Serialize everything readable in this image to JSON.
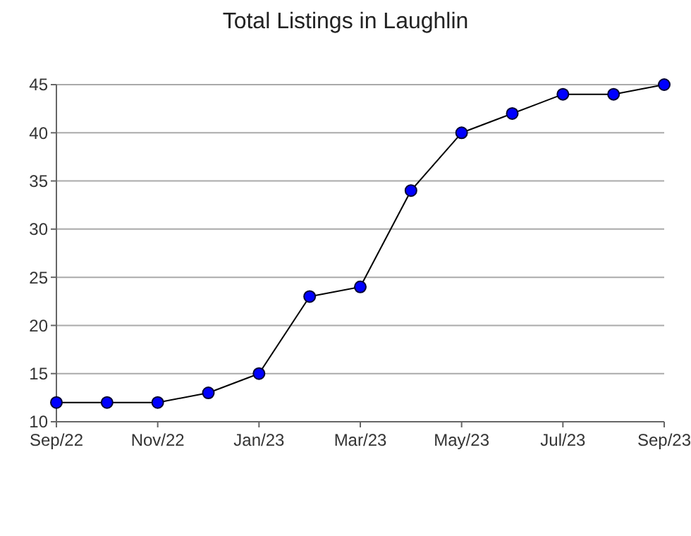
{
  "chart_data": {
    "type": "line",
    "title": "Total Listings in Laughlin",
    "categories": [
      "Sep/22",
      null,
      "Nov/22",
      null,
      "Jan/23",
      null,
      "Mar/23",
      null,
      "May/23",
      null,
      "Jul/23",
      null,
      "Sep/23"
    ],
    "series": [
      {
        "color": "#0000ff",
        "values": [
          12,
          12,
          12,
          13,
          15,
          23,
          24,
          34,
          40,
          42,
          44,
          44,
          45
        ]
      }
    ],
    "ylim": [
      10,
      45
    ],
    "yticks": [
      10,
      15,
      20,
      25,
      30,
      35,
      40,
      45
    ],
    "grid": "y",
    "marker": "circle",
    "line_style": "solid"
  }
}
